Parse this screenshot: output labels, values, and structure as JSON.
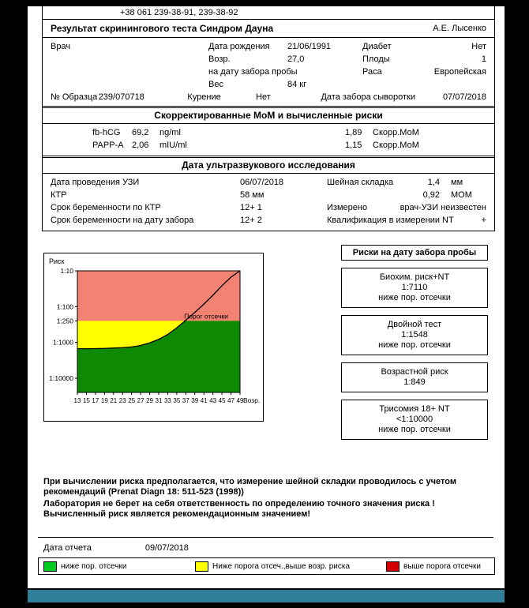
{
  "header": {
    "phone": "+38 061 239-38-91, 239-38-92",
    "title": "Результат скринингового теста Синдром Дауна",
    "author": "А.Е. Лысенко"
  },
  "patient": {
    "doctor_label": "Врач",
    "dob_label": "Дата рождения",
    "dob": "21/06/1991",
    "diabetes_label": "Диабет",
    "diabetes": "Нет",
    "age_label": "Возр.",
    "age": "27,0",
    "fetuses_label": "Плоды",
    "fetuses": "1",
    "age_note": "на дату забора пробы",
    "race_label": "Раса",
    "race": "Европейская",
    "weight_label": "Вес",
    "weight": "84 кг",
    "sample_label": "№ Образца",
    "sample": "239/070718",
    "smoking_label": "Курение",
    "smoking": "Нет",
    "serum_label": "Дата забора сыворотки",
    "serum_date": "07/07/2018"
  },
  "mom_section": {
    "title": "Скорректированные МоМ и вычисленные риски",
    "rows": [
      {
        "analyte": "fb-hCG",
        "value": "69,2",
        "unit": "ng/ml",
        "mom": "1,89",
        "mom_label": "Скорр.МоМ"
      },
      {
        "analyte": "PAPP-A",
        "value": "2,06",
        "unit": "mIU/ml",
        "mom": "1,15",
        "mom_label": "Скорр.МоМ"
      }
    ]
  },
  "ultrasound": {
    "title": "Дата ультразвукового исследования",
    "rows": [
      {
        "label": "Дата проведения УЗИ",
        "value": "06/07/2018",
        "label2": "Шейная складка",
        "value2": "1,4",
        "unit": "мм"
      },
      {
        "label": "КТР",
        "value": "58 мм",
        "label2": "",
        "value2": "0,92",
        "unit": "МОМ"
      },
      {
        "label": "Срок беременности по КТР",
        "value": "12+ 1",
        "label2": "Измерено",
        "value2": "врач-УЗИ неизвестен",
        "unit": ""
      },
      {
        "label": "Срок беременности на дату забора",
        "value": "12+ 2",
        "label2": "Квалификация в измерении NT",
        "value2": "+",
        "unit": ""
      }
    ]
  },
  "risk_panel": {
    "title": "Риски на дату забора пробы",
    "boxes": [
      {
        "name": "Биохим. риск+NT",
        "value": "1:7110",
        "note": "ниже пор. отсечки"
      },
      {
        "name": "Двойной тест",
        "value": "1:1548",
        "note": "ниже пор. отсечки"
      },
      {
        "name": "Возрастной риск",
        "value": "1:849",
        "note": ""
      },
      {
        "name": "Трисомия 18+ NT",
        "value": "<1:10000",
        "note": "ниже пор. отсечки"
      }
    ]
  },
  "chart_data": {
    "type": "line",
    "ylabel_corner": "Риск",
    "xlabel": "Возр.",
    "x_range": [
      13,
      49
    ],
    "x_ticks": [
      13,
      15,
      17,
      19,
      21,
      23,
      25,
      27,
      29,
      31,
      33,
      35,
      37,
      39,
      41,
      43,
      45,
      47,
      49
    ],
    "y_scale": "log (risk 1:N, N denominator)",
    "y_range_denominator": [
      10,
      25000
    ],
    "y_ticks": [
      {
        "denominator": 10,
        "label": "1:10"
      },
      {
        "denominator": 100,
        "label": "1:100"
      },
      {
        "denominator": 250,
        "label": "1:250"
      },
      {
        "denominator": 1000,
        "label": "1:1000"
      },
      {
        "denominator": 10000,
        "label": "1:10000"
      }
    ],
    "cutoff": {
      "denominator": 250,
      "label": "Порог отсечки"
    },
    "regions": {
      "above_cutoff_color": "#F28272",
      "between_color": "#FFFF00",
      "below_curve_color": "#0E8A00"
    },
    "series": [
      {
        "name": "Возрастной риск",
        "x": [
          13,
          15,
          17,
          19,
          21,
          23,
          25,
          27,
          29,
          31,
          33,
          35,
          37,
          39,
          41,
          43,
          45,
          47,
          49
        ],
        "denominator": [
          1500,
          1500,
          1490,
          1470,
          1440,
          1400,
          1340,
          1220,
          1030,
          820,
          600,
          390,
          240,
          145,
          85,
          48,
          26,
          15,
          10
        ]
      }
    ]
  },
  "footer": {
    "disclaimer1": "При вычислении риска предполагается, что измерение шейной складки проводилось с учетом рекомендаций (Prenat Diagn 18: 511-523 (1998))",
    "disclaimer2": "Лаборатория не берет на себя ответственность по определению точного значения риска ! Вычисленный риск является рекомендационным значением!",
    "report_date_label": "Дата отчета",
    "report_date": "09/07/2018",
    "legend": [
      {
        "color": "#00CC22",
        "label": "ниже пор. отсечки"
      },
      {
        "color": "#FFFF00",
        "label": "Ниже порога отсеч.,выше возр. риска"
      },
      {
        "color": "#D40000",
        "label": "выше порога отсечки"
      }
    ]
  }
}
